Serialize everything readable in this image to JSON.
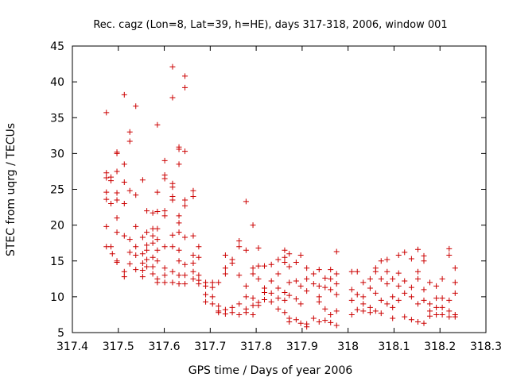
{
  "chart_data": {
    "type": "scatter",
    "title": "Rec. cagz (Lon=8, Lat=39, h=HE), days 317-318, 2006, window 001",
    "xlabel": "GPS time / Days of year 2006",
    "ylabel": "STEC from uqrg / TECUs",
    "xlim": [
      317.4,
      318.3
    ],
    "ylim": [
      5,
      45
    ],
    "x_ticks": [
      "317.4",
      "317.5",
      "317.6",
      "317.7",
      "317.8",
      "317.9",
      "318",
      "318.1",
      "318.2",
      "318.3"
    ],
    "y_ticks": [
      "5",
      "10",
      "15",
      "20",
      "25",
      "30",
      "35",
      "40",
      "45"
    ],
    "marker": "plus",
    "color": "#cc0000",
    "grid": false,
    "series": [
      {
        "name": "",
        "points": [
          [
            317.474,
            35.7
          ],
          [
            317.474,
            27.3
          ],
          [
            317.474,
            26.6
          ],
          [
            317.474,
            24.6
          ],
          [
            317.474,
            23.6
          ],
          [
            317.474,
            19.8
          ],
          [
            317.474,
            17.0
          ],
          [
            317.484,
            26.7
          ],
          [
            317.484,
            26.2
          ],
          [
            317.484,
            23.0
          ],
          [
            317.484,
            17.0
          ],
          [
            317.487,
            16.0
          ],
          [
            317.497,
            30.2
          ],
          [
            317.497,
            30.0
          ],
          [
            317.497,
            27.5
          ],
          [
            317.497,
            24.5
          ],
          [
            317.497,
            23.5
          ],
          [
            317.497,
            21.0
          ],
          [
            317.497,
            19.0
          ],
          [
            317.497,
            15.0
          ],
          [
            317.497,
            14.8
          ],
          [
            317.513,
            38.2
          ],
          [
            317.513,
            28.5
          ],
          [
            317.513,
            26.0
          ],
          [
            317.513,
            23.0
          ],
          [
            317.513,
            18.5
          ],
          [
            317.513,
            13.5
          ],
          [
            317.513,
            12.8
          ],
          [
            317.525,
            33.0
          ],
          [
            317.525,
            31.7
          ],
          [
            317.525,
            24.8
          ],
          [
            317.525,
            18.0
          ],
          [
            317.525,
            16.2
          ],
          [
            317.525,
            14.6
          ],
          [
            317.538,
            36.6
          ],
          [
            317.538,
            24.2
          ],
          [
            317.538,
            19.8
          ],
          [
            317.538,
            17.0
          ],
          [
            317.538,
            15.8
          ],
          [
            317.538,
            13.8
          ],
          [
            317.553,
            26.3
          ],
          [
            317.553,
            18.3
          ],
          [
            317.553,
            16.0
          ],
          [
            317.553,
            14.7
          ],
          [
            317.553,
            13.7
          ],
          [
            317.553,
            12.8
          ],
          [
            317.562,
            22.0
          ],
          [
            317.562,
            19.0
          ],
          [
            317.562,
            17.2
          ],
          [
            317.562,
            16.5
          ],
          [
            317.562,
            15.2
          ],
          [
            317.562,
            14.2
          ],
          [
            317.575,
            21.7
          ],
          [
            317.575,
            19.5
          ],
          [
            317.575,
            18.5
          ],
          [
            317.575,
            17.5
          ],
          [
            317.575,
            15.5
          ],
          [
            317.575,
            14.2
          ],
          [
            317.575,
            13.2
          ],
          [
            317.585,
            34.0
          ],
          [
            317.585,
            24.6
          ],
          [
            317.585,
            21.9
          ],
          [
            317.585,
            19.5
          ],
          [
            317.585,
            18.0
          ],
          [
            317.585,
            16.5
          ],
          [
            317.585,
            15.0
          ],
          [
            317.585,
            12.5
          ],
          [
            317.585,
            12.0
          ],
          [
            317.601,
            29.0
          ],
          [
            317.601,
            27.0
          ],
          [
            317.601,
            26.5
          ],
          [
            317.601,
            22.0
          ],
          [
            317.601,
            21.3
          ],
          [
            317.601,
            17.0
          ],
          [
            317.601,
            14.0
          ],
          [
            317.601,
            13.0
          ],
          [
            317.601,
            12.0
          ],
          [
            317.618,
            42.1
          ],
          [
            317.618,
            37.8
          ],
          [
            317.618,
            25.8
          ],
          [
            317.618,
            25.3
          ],
          [
            317.618,
            24.0
          ],
          [
            317.618,
            23.5
          ],
          [
            317.618,
            18.6
          ],
          [
            317.618,
            17.0
          ],
          [
            317.618,
            13.5
          ],
          [
            317.618,
            12.0
          ],
          [
            317.632,
            30.9
          ],
          [
            317.632,
            30.6
          ],
          [
            317.632,
            28.5
          ],
          [
            317.632,
            21.3
          ],
          [
            317.632,
            20.3
          ],
          [
            317.632,
            19.0
          ],
          [
            317.632,
            16.5
          ],
          [
            317.632,
            15.0
          ],
          [
            317.632,
            13.0
          ],
          [
            317.632,
            11.8
          ],
          [
            317.645,
            40.8
          ],
          [
            317.645,
            39.2
          ],
          [
            317.645,
            30.3
          ],
          [
            317.645,
            23.5
          ],
          [
            317.645,
            22.7
          ],
          [
            317.645,
            18.3
          ],
          [
            317.645,
            14.5
          ],
          [
            317.645,
            13.0
          ],
          [
            317.645,
            11.8
          ],
          [
            317.663,
            24.8
          ],
          [
            317.663,
            24.0
          ],
          [
            317.663,
            18.5
          ],
          [
            317.663,
            15.8
          ],
          [
            317.663,
            14.7
          ],
          [
            317.663,
            13.5
          ],
          [
            317.663,
            12.5
          ],
          [
            317.675,
            17.0
          ],
          [
            317.675,
            15.5
          ],
          [
            317.675,
            13.0
          ],
          [
            317.675,
            12.3
          ],
          [
            317.675,
            11.8
          ],
          [
            317.69,
            12.0
          ],
          [
            317.69,
            11.5
          ],
          [
            317.69,
            10.3
          ],
          [
            317.69,
            9.3
          ],
          [
            317.705,
            12.0
          ],
          [
            317.705,
            11.3
          ],
          [
            317.705,
            10.0
          ],
          [
            317.705,
            9.0
          ],
          [
            317.718,
            12.0
          ],
          [
            317.718,
            8.7
          ],
          [
            317.718,
            8.0
          ],
          [
            317.718,
            7.8
          ],
          [
            317.733,
            15.8
          ],
          [
            317.733,
            14.0
          ],
          [
            317.733,
            13.2
          ],
          [
            317.733,
            8.2
          ],
          [
            317.733,
            7.6
          ],
          [
            317.748,
            15.2
          ],
          [
            317.748,
            14.7
          ],
          [
            317.748,
            8.5
          ],
          [
            317.748,
            7.8
          ],
          [
            317.763,
            17.8
          ],
          [
            317.763,
            17.0
          ],
          [
            317.763,
            13.0
          ],
          [
            317.763,
            9.0
          ],
          [
            317.763,
            7.5
          ],
          [
            317.778,
            23.3
          ],
          [
            317.778,
            16.5
          ],
          [
            317.778,
            11.5
          ],
          [
            317.778,
            10.0
          ],
          [
            317.778,
            8.3
          ],
          [
            317.778,
            7.8
          ],
          [
            317.793,
            20.0
          ],
          [
            317.793,
            14.0
          ],
          [
            317.793,
            13.2
          ],
          [
            317.793,
            9.8
          ],
          [
            317.793,
            8.8
          ],
          [
            317.793,
            7.5
          ],
          [
            317.805,
            16.8
          ],
          [
            317.805,
            14.3
          ],
          [
            317.805,
            12.5
          ],
          [
            317.805,
            9.2
          ],
          [
            317.805,
            8.8
          ],
          [
            317.818,
            14.3
          ],
          [
            317.818,
            11.2
          ],
          [
            317.818,
            10.6
          ],
          [
            317.818,
            9.6
          ],
          [
            317.833,
            14.5
          ],
          [
            317.833,
            12.2
          ],
          [
            317.833,
            10.5
          ],
          [
            317.833,
            9.3
          ],
          [
            317.848,
            15.2
          ],
          [
            317.848,
            13.2
          ],
          [
            317.848,
            11.2
          ],
          [
            317.848,
            9.8
          ],
          [
            317.848,
            8.3
          ],
          [
            317.862,
            16.5
          ],
          [
            317.862,
            15.5
          ],
          [
            317.862,
            14.8
          ],
          [
            317.862,
            10.6
          ],
          [
            317.862,
            9.5
          ],
          [
            317.862,
            7.8
          ],
          [
            317.872,
            16.0
          ],
          [
            317.872,
            14.2
          ],
          [
            317.872,
            12.0
          ],
          [
            317.872,
            10.2
          ],
          [
            317.872,
            7.0
          ],
          [
            317.872,
            6.5
          ],
          [
            317.887,
            14.8
          ],
          [
            317.887,
            12.2
          ],
          [
            317.887,
            9.7
          ],
          [
            317.887,
            6.8
          ],
          [
            317.897,
            15.8
          ],
          [
            317.897,
            11.5
          ],
          [
            317.897,
            9.0
          ],
          [
            317.897,
            6.3
          ],
          [
            317.91,
            14.0
          ],
          [
            317.91,
            12.5
          ],
          [
            317.91,
            10.8
          ],
          [
            317.91,
            6.2
          ],
          [
            317.91,
            5.8
          ],
          [
            317.925,
            13.2
          ],
          [
            317.925,
            11.8
          ],
          [
            317.925,
            7.0
          ],
          [
            317.937,
            13.8
          ],
          [
            317.937,
            11.5
          ],
          [
            317.937,
            10.0
          ],
          [
            317.937,
            9.3
          ],
          [
            317.937,
            6.5
          ],
          [
            317.95,
            12.6
          ],
          [
            317.95,
            11.3
          ],
          [
            317.95,
            8.3
          ],
          [
            317.95,
            6.7
          ],
          [
            317.962,
            13.8
          ],
          [
            317.962,
            12.5
          ],
          [
            317.962,
            11.0
          ],
          [
            317.962,
            7.5
          ],
          [
            317.962,
            6.4
          ],
          [
            317.975,
            16.3
          ],
          [
            317.975,
            13.2
          ],
          [
            317.975,
            11.8
          ],
          [
            317.975,
            10.3
          ],
          [
            317.975,
            8.0
          ],
          [
            317.975,
            6.0
          ],
          [
            318.008,
            13.5
          ],
          [
            318.008,
            11.0
          ],
          [
            318.008,
            9.5
          ],
          [
            318.008,
            7.5
          ],
          [
            318.02,
            13.5
          ],
          [
            318.02,
            10.3
          ],
          [
            318.02,
            8.2
          ],
          [
            318.033,
            12.0
          ],
          [
            318.033,
            10.0
          ],
          [
            318.033,
            9.0
          ],
          [
            318.033,
            8.0
          ],
          [
            318.048,
            12.5
          ],
          [
            318.048,
            11.2
          ],
          [
            318.048,
            8.5
          ],
          [
            318.048,
            7.8
          ],
          [
            318.06,
            14.0
          ],
          [
            318.06,
            13.5
          ],
          [
            318.06,
            10.5
          ],
          [
            318.06,
            8.0
          ],
          [
            318.072,
            15.0
          ],
          [
            318.072,
            12.5
          ],
          [
            318.072,
            9.5
          ],
          [
            318.072,
            7.7
          ],
          [
            318.085,
            15.2
          ],
          [
            318.085,
            13.5
          ],
          [
            318.085,
            11.8
          ],
          [
            318.085,
            9.0
          ],
          [
            318.097,
            12.5
          ],
          [
            318.097,
            10.0
          ],
          [
            318.097,
            8.5
          ],
          [
            318.097,
            7.0
          ],
          [
            318.11,
            15.8
          ],
          [
            318.11,
            13.3
          ],
          [
            318.11,
            11.5
          ],
          [
            318.11,
            9.5
          ],
          [
            318.123,
            16.2
          ],
          [
            318.123,
            12.2
          ],
          [
            318.123,
            10.5
          ],
          [
            318.123,
            7.2
          ],
          [
            318.138,
            15.3
          ],
          [
            318.138,
            11.3
          ],
          [
            318.138,
            10.0
          ],
          [
            318.138,
            6.8
          ],
          [
            318.152,
            16.6
          ],
          [
            318.152,
            13.5
          ],
          [
            318.152,
            12.5
          ],
          [
            318.152,
            9.0
          ],
          [
            318.152,
            6.5
          ],
          [
            318.165,
            15.7
          ],
          [
            318.165,
            15.0
          ],
          [
            318.165,
            11.0
          ],
          [
            318.165,
            9.5
          ],
          [
            318.165,
            6.3
          ],
          [
            318.178,
            12.0
          ],
          [
            318.178,
            9.0
          ],
          [
            318.178,
            8.0
          ],
          [
            318.178,
            7.3
          ],
          [
            318.192,
            11.5
          ],
          [
            318.192,
            9.8
          ],
          [
            318.192,
            8.5
          ],
          [
            318.192,
            7.5
          ],
          [
            318.205,
            12.5
          ],
          [
            318.205,
            9.8
          ],
          [
            318.205,
            8.5
          ],
          [
            318.205,
            7.5
          ],
          [
            318.22,
            16.7
          ],
          [
            318.22,
            15.8
          ],
          [
            318.22,
            9.5
          ],
          [
            318.22,
            8.0
          ],
          [
            318.22,
            7.2
          ],
          [
            318.233,
            14.0
          ],
          [
            318.233,
            12.0
          ],
          [
            318.233,
            10.5
          ],
          [
            318.233,
            7.5
          ],
          [
            318.233,
            7.2
          ]
        ]
      }
    ]
  }
}
